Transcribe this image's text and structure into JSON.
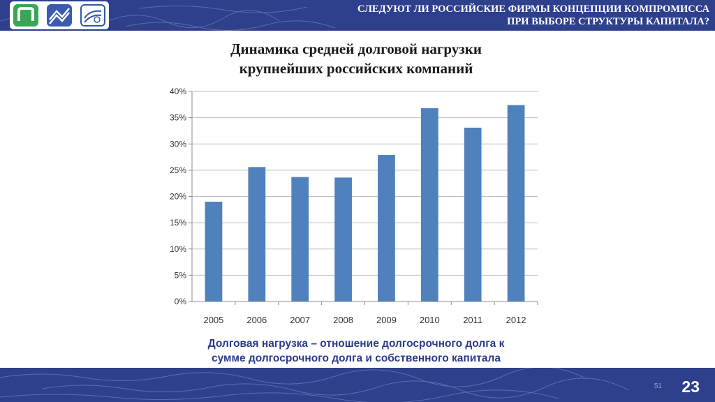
{
  "header": {
    "title_line1": "СЛЕДУЮТ ЛИ РОССИЙСКИЕ ФИРМЫ КОНЦЕПЦИИ КОМПРОМИССА",
    "title_line2": "ПРИ ВЫБОРЕ СТРУКТУРЫ КАПИТАЛА?"
  },
  "chart_title": {
    "line1": "Динамика средней долговой нагрузки",
    "line2": "крупнейших российских компаний"
  },
  "caption": {
    "line1": "Долговая нагрузка – отношение долгосрочного долга к",
    "line2": "сумме долгосрочного долга и собственного капитала"
  },
  "footer": {
    "page_number": "23",
    "small_number": "51"
  },
  "colors": {
    "brand_blue": "#2e3f8c",
    "bar": "#4f81bd",
    "caption": "#2c3a8c"
  },
  "chart_data": {
    "type": "bar",
    "categories": [
      "2005",
      "2006",
      "2007",
      "2008",
      "2009",
      "2010",
      "2011",
      "2012"
    ],
    "values": [
      19.0,
      25.6,
      23.7,
      23.6,
      27.9,
      36.8,
      33.1,
      37.4
    ],
    "y_ticks": [
      "0%",
      "5%",
      "10%",
      "15%",
      "20%",
      "25%",
      "30%",
      "35%",
      "40%"
    ],
    "ylim": [
      0,
      40
    ],
    "grid": true,
    "legend": "none"
  }
}
